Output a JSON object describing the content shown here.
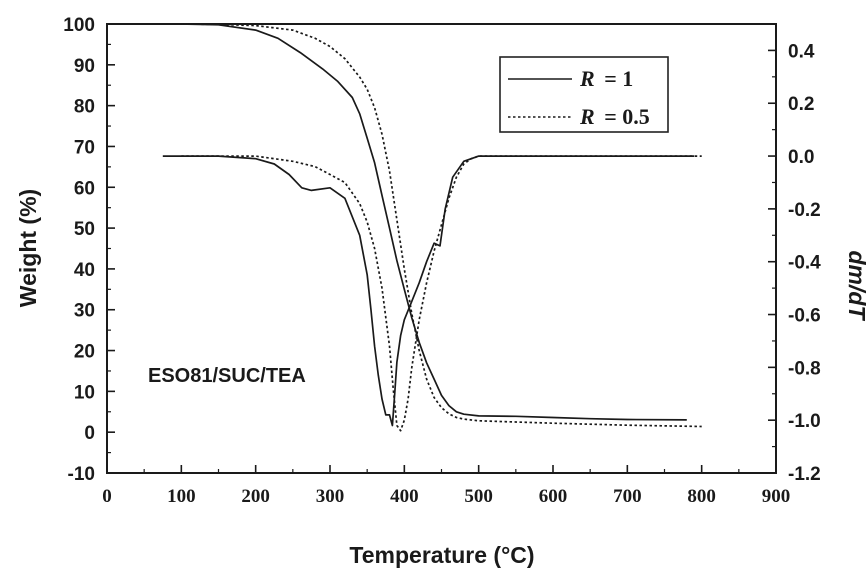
{
  "chart_data": {
    "type": "line",
    "xlabel": "Temperature (°C)",
    "ylabel_left": "Weight (%)",
    "ylabel_right": "dm/dT",
    "annotation": "ESO81/SUC/TEA",
    "xlim": [
      0,
      900
    ],
    "ylim_left": [
      -10,
      100
    ],
    "ylim_right": [
      -1.2,
      0.5
    ],
    "x_ticks": [
      0,
      100,
      200,
      300,
      400,
      500,
      600,
      700,
      800,
      900
    ],
    "y_left_ticks": [
      -10,
      0,
      10,
      20,
      30,
      40,
      50,
      60,
      70,
      80,
      90,
      100
    ],
    "y_right_ticks": [
      "0.4",
      "0.2",
      "0.0",
      "-0.2",
      "-0.4",
      "-0.6",
      "-0.8",
      "-1.0",
      "-1.2"
    ],
    "legend_position": "top-right",
    "legend": [
      {
        "symbol": "R",
        "value": "= 1",
        "style": "solid"
      },
      {
        "symbol": "R",
        "value": "= 0.5",
        "style": "dotted"
      }
    ],
    "series": [
      {
        "label": "R = 1 weight",
        "axis": "left",
        "style": "solid",
        "x": [
          100,
          150,
          200,
          230,
          260,
          290,
          310,
          330,
          340,
          350,
          360,
          370,
          380,
          390,
          400,
          410,
          420,
          430,
          440,
          450,
          460,
          470,
          480,
          500,
          550,
          600,
          650,
          700,
          780
        ],
        "y": [
          100,
          99.8,
          98.5,
          96.5,
          93,
          89,
          86,
          82,
          78,
          72,
          66,
          58,
          50,
          42,
          35,
          28,
          22,
          17,
          13,
          9,
          6.5,
          5,
          4.4,
          4,
          3.9,
          3.6,
          3.3,
          3.1,
          3.0
        ]
      },
      {
        "label": "R = 0.5 weight",
        "axis": "left",
        "style": "dotted",
        "x": [
          100,
          150,
          200,
          250,
          280,
          300,
          320,
          340,
          350,
          360,
          370,
          380,
          390,
          400,
          410,
          420,
          430,
          440,
          450,
          460,
          470,
          480,
          500,
          550,
          600,
          700,
          800
        ],
        "y": [
          100,
          99.9,
          99.6,
          98.5,
          96.5,
          94.5,
          91.5,
          87,
          84,
          79.5,
          73,
          64,
          52,
          40,
          29,
          20,
          13,
          8.5,
          6,
          4.5,
          3.6,
          3.2,
          2.8,
          2.5,
          2.2,
          1.7,
          1.4
        ]
      },
      {
        "label": "R = 1 dm/dT",
        "axis": "right",
        "style": "solid",
        "x": [
          75,
          150,
          200,
          225,
          245,
          262,
          275,
          300,
          320,
          340,
          350,
          355,
          360,
          365,
          370,
          375,
          380,
          384,
          387,
          390,
          395,
          400,
          410,
          420,
          430,
          440,
          448,
          455,
          465,
          480,
          500,
          550,
          600,
          650,
          700,
          790
        ],
        "y": [
          0.0,
          0.0,
          -0.01,
          -0.03,
          -0.07,
          -0.12,
          -0.13,
          -0.12,
          -0.16,
          -0.3,
          -0.45,
          -0.58,
          -0.72,
          -0.83,
          -0.92,
          -0.98,
          -0.98,
          -1.02,
          -0.9,
          -0.78,
          -0.68,
          -0.62,
          -0.55,
          -0.48,
          -0.4,
          -0.33,
          -0.34,
          -0.2,
          -0.08,
          -0.02,
          0.0,
          0.0,
          0.0,
          0.0,
          0.0,
          0.0
        ]
      },
      {
        "label": "R = 0.5 dm/dT",
        "axis": "right",
        "style": "dotted",
        "x": [
          100,
          200,
          250,
          280,
          300,
          320,
          340,
          350,
          360,
          370,
          380,
          385,
          390,
          395,
          400,
          405,
          410,
          420,
          430,
          440,
          450,
          460,
          470,
          480,
          490,
          500,
          600,
          700,
          800
        ],
        "y": [
          0.0,
          0.0,
          -0.02,
          -0.04,
          -0.07,
          -0.1,
          -0.18,
          -0.25,
          -0.35,
          -0.5,
          -0.72,
          -0.88,
          -1.02,
          -1.04,
          -1.0,
          -0.92,
          -0.8,
          -0.62,
          -0.48,
          -0.36,
          -0.26,
          -0.16,
          -0.08,
          -0.03,
          -0.01,
          0.0,
          0.0,
          0.0,
          0.0
        ]
      }
    ]
  }
}
